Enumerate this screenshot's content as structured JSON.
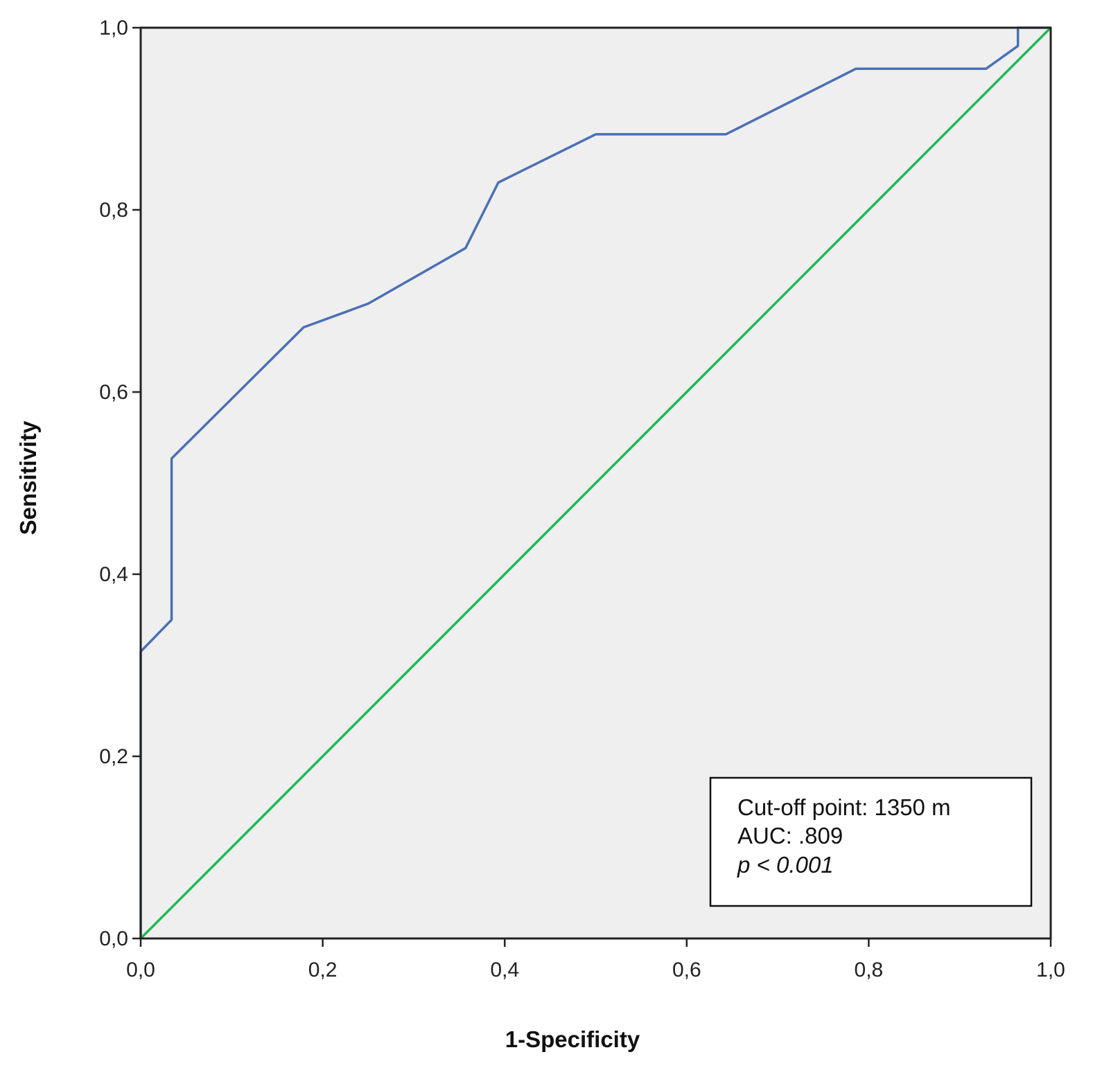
{
  "chart_data": {
    "type": "line",
    "xlabel": "1-Specificity",
    "ylabel": "Sensitivity",
    "xlim": [
      0,
      1
    ],
    "ylim": [
      0,
      1
    ],
    "x_ticks": [
      "0,0",
      "0,2",
      "0,4",
      "0,6",
      "0,8",
      "1,0"
    ],
    "y_ticks": [
      "0,0",
      "0,2",
      "0,4",
      "0,6",
      "0,8",
      "1,0"
    ],
    "grid": false,
    "plot_background": "#efefef",
    "annotation": [
      "Cut-off point: 1350 m",
      "AUC: .809",
      "p < 0.001"
    ],
    "series": [
      {
        "color": "#4a6fb5",
        "x": [
          0.0,
          0.0,
          0.034,
          0.034,
          0.179,
          0.25,
          0.357,
          0.393,
          0.5,
          0.643,
          0.786,
          0.929,
          0.964,
          0.964,
          1.0
        ],
        "y": [
          0.0,
          0.315,
          0.35,
          0.527,
          0.671,
          0.697,
          0.758,
          0.83,
          0.883,
          0.883,
          0.955,
          0.955,
          0.98,
          1.0,
          1.0
        ]
      },
      {
        "color": "#1db954",
        "x": [
          0,
          1
        ],
        "y": [
          0,
          1
        ]
      }
    ]
  }
}
